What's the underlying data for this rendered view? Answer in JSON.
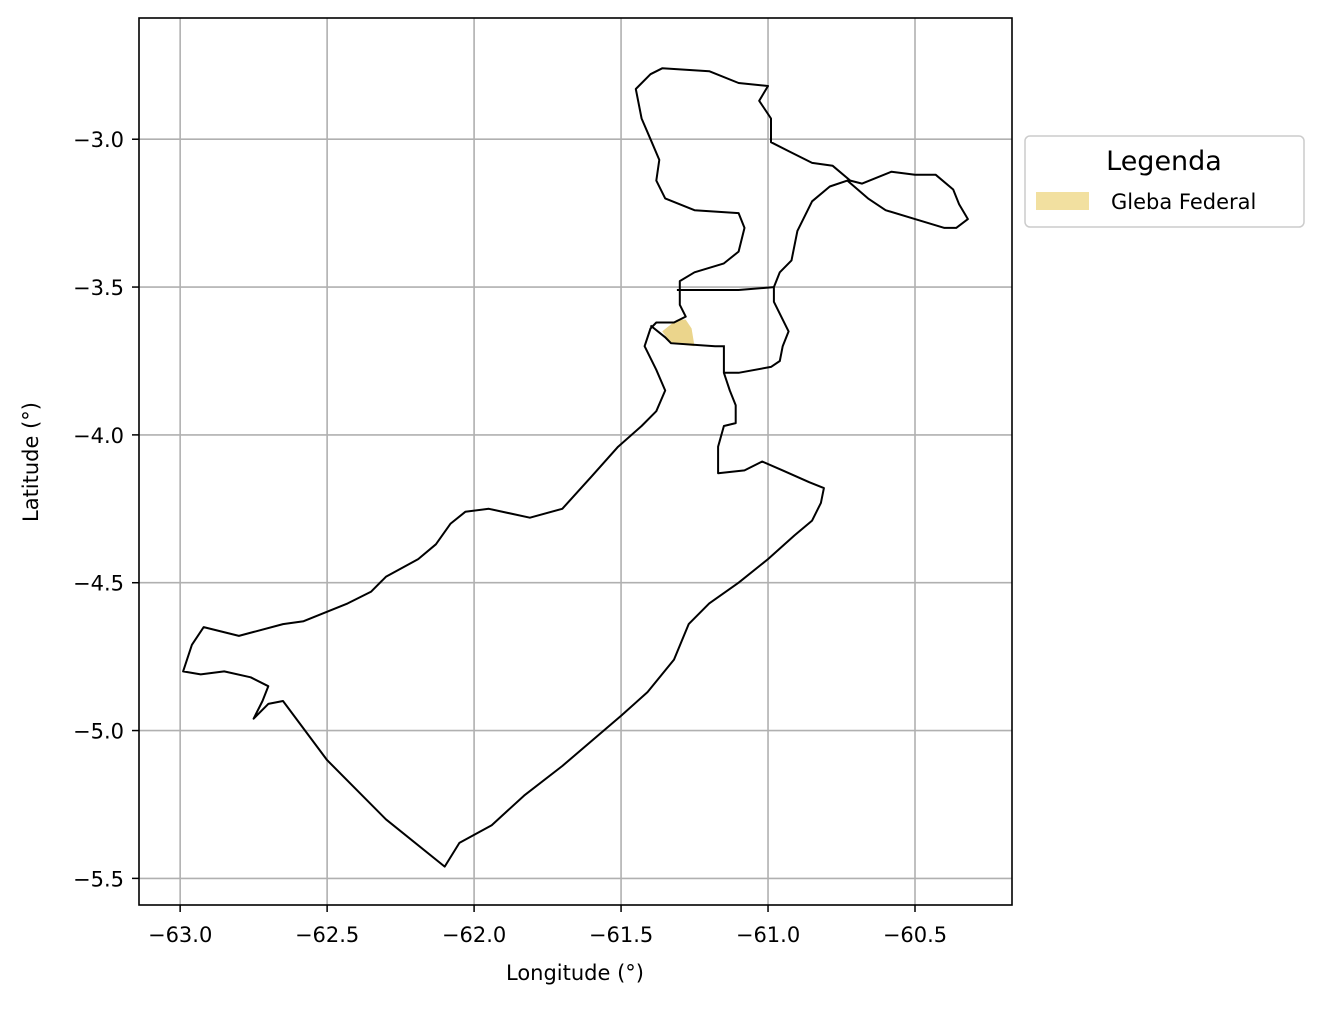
{
  "map": {
    "x_axis": {
      "label": "Longitude (°)",
      "range": [
        -63.14,
        -60.17
      ],
      "ticks": [
        -63.0,
        -62.5,
        -62.0,
        -61.5,
        -61.0,
        -60.5
      ],
      "tick_labels": [
        "−63.0",
        "−62.5",
        "−62.0",
        "−61.5",
        "−61.0",
        "−60.5"
      ]
    },
    "y_axis": {
      "label": "Latitude (°)",
      "range": [
        -5.59,
        -2.59
      ],
      "ticks": [
        -3.0,
        -3.5,
        -4.0,
        -4.5,
        -5.0,
        -5.5
      ],
      "tick_labels": [
        "−3.0",
        "−3.5",
        "−4.0",
        "−4.5",
        "−5.0",
        "−5.5"
      ]
    },
    "grid": true,
    "legend": {
      "title": "Legenda",
      "placement": "outside-right-top",
      "entries": [
        {
          "label": "Gleba Federal",
          "color": "#f2e0a0"
        }
      ]
    },
    "colors": {
      "boundary": "#000000",
      "gleba_fill": "#ebd58c",
      "grid": "#b0b0b0"
    },
    "boundary_lonlat": [
      [
        -61.45,
        -2.83
      ],
      [
        -61.4,
        -2.78
      ],
      [
        -61.36,
        -2.76
      ],
      [
        -61.2,
        -2.77
      ],
      [
        -61.1,
        -2.81
      ],
      [
        -61.0,
        -2.82
      ],
      [
        -61.03,
        -2.87
      ],
      [
        -60.99,
        -2.93
      ],
      [
        -60.99,
        -3.01
      ],
      [
        -60.93,
        -3.04
      ],
      [
        -60.85,
        -3.08
      ],
      [
        -60.78,
        -3.09
      ],
      [
        -60.72,
        -3.14
      ],
      [
        -60.68,
        -3.15
      ],
      [
        -60.58,
        -3.11
      ],
      [
        -60.5,
        -3.12
      ],
      [
        -60.43,
        -3.12
      ],
      [
        -60.37,
        -3.17
      ],
      [
        -60.35,
        -3.22
      ],
      [
        -60.32,
        -3.27
      ],
      [
        -60.36,
        -3.3
      ],
      [
        -60.4,
        -3.3
      ],
      [
        -60.5,
        -3.27
      ],
      [
        -60.6,
        -3.24
      ],
      [
        -60.66,
        -3.2
      ],
      [
        -60.73,
        -3.14
      ],
      [
        -60.79,
        -3.16
      ],
      [
        -60.85,
        -3.21
      ],
      [
        -60.9,
        -3.31
      ],
      [
        -60.92,
        -3.41
      ],
      [
        -60.96,
        -3.45
      ],
      [
        -60.98,
        -3.5
      ],
      [
        -60.98,
        -3.55
      ],
      [
        -60.95,
        -3.61
      ],
      [
        -60.93,
        -3.65
      ],
      [
        -60.95,
        -3.7
      ],
      [
        -60.96,
        -3.75
      ],
      [
        -60.99,
        -3.77
      ],
      [
        -61.1,
        -3.79
      ],
      [
        -61.15,
        -3.79
      ],
      [
        -61.13,
        -3.85
      ],
      [
        -61.11,
        -3.9
      ],
      [
        -61.11,
        -3.96
      ],
      [
        -61.15,
        -3.97
      ],
      [
        -61.17,
        -4.04
      ],
      [
        -61.17,
        -4.13
      ],
      [
        -61.08,
        -4.12
      ],
      [
        -61.02,
        -4.09
      ],
      [
        -60.95,
        -4.12
      ],
      [
        -60.86,
        -4.16
      ],
      [
        -60.81,
        -4.18
      ],
      [
        -60.82,
        -4.23
      ],
      [
        -60.85,
        -4.29
      ],
      [
        -60.91,
        -4.34
      ],
      [
        -61.0,
        -4.42
      ],
      [
        -61.1,
        -4.5
      ],
      [
        -61.2,
        -4.57
      ],
      [
        -61.27,
        -4.64
      ],
      [
        -61.32,
        -4.76
      ],
      [
        -61.41,
        -4.87
      ],
      [
        -61.5,
        -4.95
      ],
      [
        -61.7,
        -5.12
      ],
      [
        -61.83,
        -5.22
      ],
      [
        -61.94,
        -5.32
      ],
      [
        -62.05,
        -5.38
      ],
      [
        -62.1,
        -5.46
      ],
      [
        -62.3,
        -5.3
      ],
      [
        -62.5,
        -5.1
      ],
      [
        -62.65,
        -4.9
      ],
      [
        -62.7,
        -4.91
      ],
      [
        -62.75,
        -4.96
      ],
      [
        -62.72,
        -4.9
      ],
      [
        -62.7,
        -4.85
      ],
      [
        -62.76,
        -4.82
      ],
      [
        -62.85,
        -4.8
      ],
      [
        -62.93,
        -4.81
      ],
      [
        -62.99,
        -4.8
      ],
      [
        -62.96,
        -4.71
      ],
      [
        -62.92,
        -4.65
      ],
      [
        -62.8,
        -4.68
      ],
      [
        -62.65,
        -4.64
      ],
      [
        -62.58,
        -4.63
      ],
      [
        -62.43,
        -4.57
      ],
      [
        -62.35,
        -4.53
      ],
      [
        -62.3,
        -4.48
      ],
      [
        -62.19,
        -4.42
      ],
      [
        -62.13,
        -4.37
      ],
      [
        -62.08,
        -4.3
      ],
      [
        -62.03,
        -4.26
      ],
      [
        -61.95,
        -4.25
      ],
      [
        -61.81,
        -4.28
      ],
      [
        -61.7,
        -4.25
      ],
      [
        -61.6,
        -4.14
      ],
      [
        -61.51,
        -4.04
      ],
      [
        -61.43,
        -3.97
      ],
      [
        -61.38,
        -3.92
      ],
      [
        -61.35,
        -3.85
      ],
      [
        -61.38,
        -3.78
      ],
      [
        -61.42,
        -3.7
      ],
      [
        -61.4,
        -3.64
      ],
      [
        -61.38,
        -3.62
      ],
      [
        -61.32,
        -3.62
      ],
      [
        -61.28,
        -3.6
      ],
      [
        -61.3,
        -3.56
      ],
      [
        -61.3,
        -3.48
      ],
      [
        -61.25,
        -3.45
      ],
      [
        -61.15,
        -3.42
      ],
      [
        -61.1,
        -3.38
      ],
      [
        -61.08,
        -3.3
      ],
      [
        -61.1,
        -3.25
      ],
      [
        -61.25,
        -3.24
      ],
      [
        -61.35,
        -3.2
      ],
      [
        -61.38,
        -3.14
      ],
      [
        -61.37,
        -3.07
      ],
      [
        -61.4,
        -3.0
      ],
      [
        -61.43,
        -2.93
      ]
    ],
    "inner_line_lonlat": [
      [
        -61.4,
        -3.63
      ],
      [
        -61.35,
        -3.67
      ],
      [
        -61.33,
        -3.69
      ],
      [
        -61.18,
        -3.7
      ],
      [
        -61.15,
        -3.7
      ],
      [
        -61.15,
        -3.79
      ]
    ],
    "divider_lonlat": [
      [
        -61.31,
        -3.51
      ],
      [
        -61.1,
        -3.51
      ],
      [
        -60.98,
        -3.5
      ]
    ],
    "gleba_lonlat": [
      [
        -61.36,
        -3.65
      ],
      [
        -61.31,
        -3.61
      ],
      [
        -61.28,
        -3.61
      ],
      [
        -61.26,
        -3.64
      ],
      [
        -61.25,
        -3.7
      ],
      [
        -61.33,
        -3.69
      ]
    ]
  }
}
